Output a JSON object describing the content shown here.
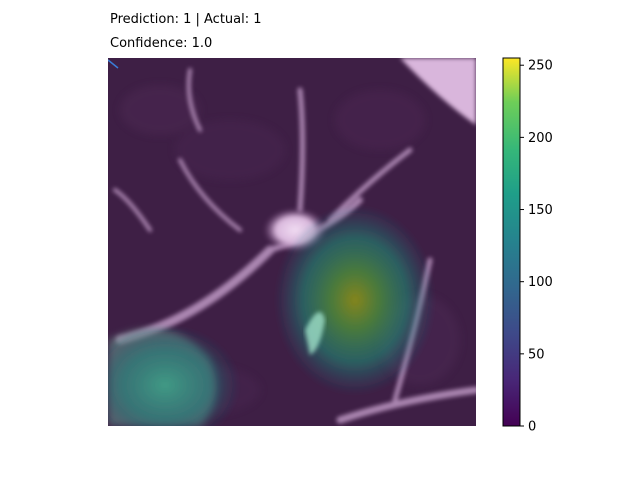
{
  "header": {
    "prediction_line": "Prediction: 1 | Actual: 1",
    "confidence_line": "Confidence: 1.0"
  },
  "chart_data": {
    "type": "heatmap",
    "title": "Prediction: 1 | Actual: 1",
    "subtitle": "Confidence: 1.0",
    "xlabel": "",
    "ylabel": "",
    "axes_visible": false,
    "grid": false,
    "colormap": "viridis",
    "colorbar": {
      "range": [
        0,
        255
      ],
      "ticks": [
        0,
        50,
        100,
        150,
        200,
        250
      ],
      "tick_labels": [
        "0",
        "50",
        "100",
        "150",
        "200",
        "250"
      ],
      "orientation": "vertical",
      "placement": "right"
    },
    "overlay_hotspot": {
      "description_value_peak": 210,
      "region": "center-right",
      "secondary_region": "bottom-left"
    },
    "colors": {
      "base_tissue": "#3e1f45",
      "bright_tissue": "#e3c6e6",
      "viridis_low": "#440154",
      "viridis_mid": "#21918c",
      "viridis_high": "#fde725"
    }
  }
}
